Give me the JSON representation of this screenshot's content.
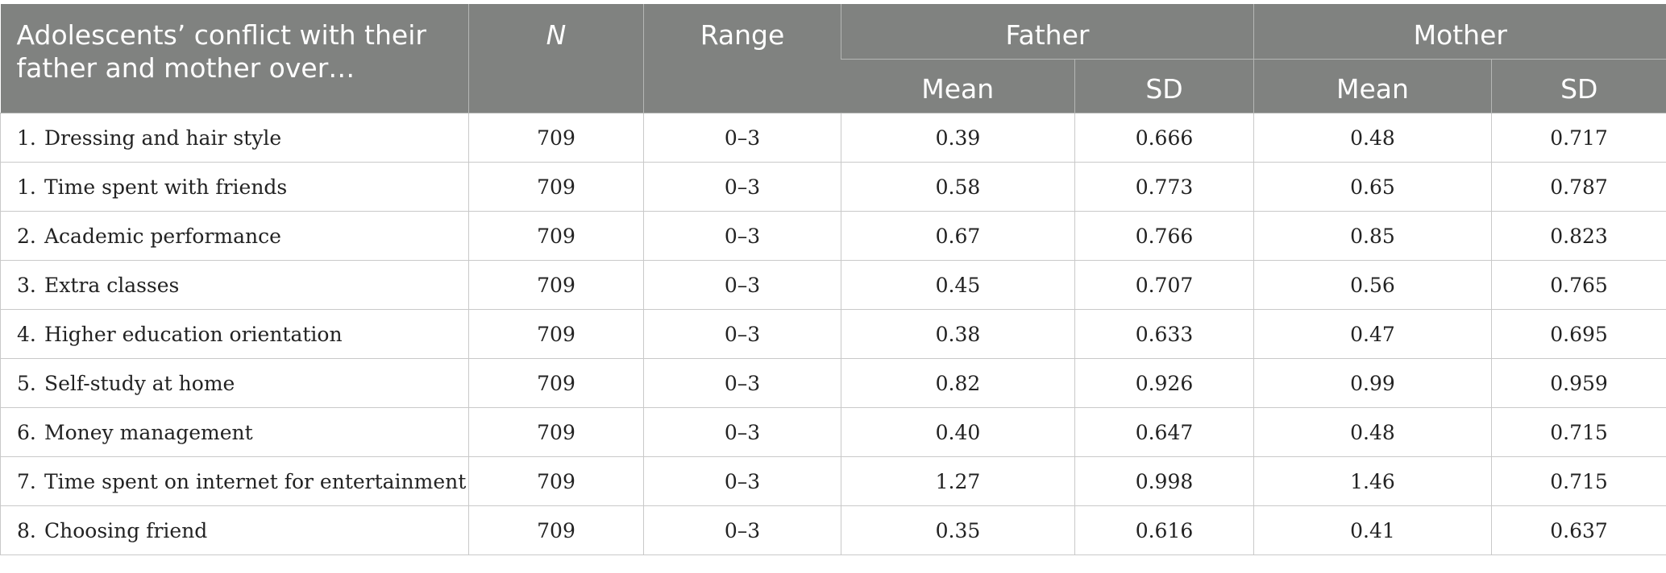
{
  "header": {
    "first_col": "Adolescents’ conflict with their father and mother over…",
    "n": "N",
    "range": "Range",
    "father": "Father",
    "mother": "Mother",
    "mean": "Mean",
    "sd": "SD"
  },
  "rows": [
    {
      "num": "1.",
      "label": "Dressing and hair style",
      "n": "709",
      "range": "0–3",
      "father_mean": "0.39",
      "father_sd": "0.666",
      "mother_mean": "0.48",
      "mother_sd": "0.717"
    },
    {
      "num": "1.",
      "label": "Time spent with friends",
      "n": "709",
      "range": "0–3",
      "father_mean": "0.58",
      "father_sd": "0.773",
      "mother_mean": "0.65",
      "mother_sd": "0.787"
    },
    {
      "num": "2.",
      "label": "Academic performance",
      "n": "709",
      "range": "0–3",
      "father_mean": "0.67",
      "father_sd": "0.766",
      "mother_mean": "0.85",
      "mother_sd": "0.823"
    },
    {
      "num": "3.",
      "label": "Extra classes",
      "n": "709",
      "range": "0–3",
      "father_mean": "0.45",
      "father_sd": "0.707",
      "mother_mean": "0.56",
      "mother_sd": "0.765"
    },
    {
      "num": "4.",
      "label": "Higher education orientation",
      "n": "709",
      "range": "0–3",
      "father_mean": "0.38",
      "father_sd": "0.633",
      "mother_mean": "0.47",
      "mother_sd": "0.695"
    },
    {
      "num": "5.",
      "label": "Self-study at home",
      "n": "709",
      "range": "0–3",
      "father_mean": "0.82",
      "father_sd": "0.926",
      "mother_mean": "0.99",
      "mother_sd": "0.959"
    },
    {
      "num": "6.",
      "label": "Money management",
      "n": "709",
      "range": "0–3",
      "father_mean": "0.40",
      "father_sd": "0.647",
      "mother_mean": "0.48",
      "mother_sd": "0.715"
    },
    {
      "num": "7.",
      "label": "Time spent on internet for entertainment",
      "n": "709",
      "range": "0–3",
      "father_mean": "1.27",
      "father_sd": "0.998",
      "mother_mean": "1.46",
      "mother_sd": "0.715"
    },
    {
      "num": "8.",
      "label": "Choosing friend",
      "n": "709",
      "range": "0–3",
      "father_mean": "0.35",
      "father_sd": "0.616",
      "mother_mean": "0.41",
      "mother_sd": "0.637"
    }
  ]
}
